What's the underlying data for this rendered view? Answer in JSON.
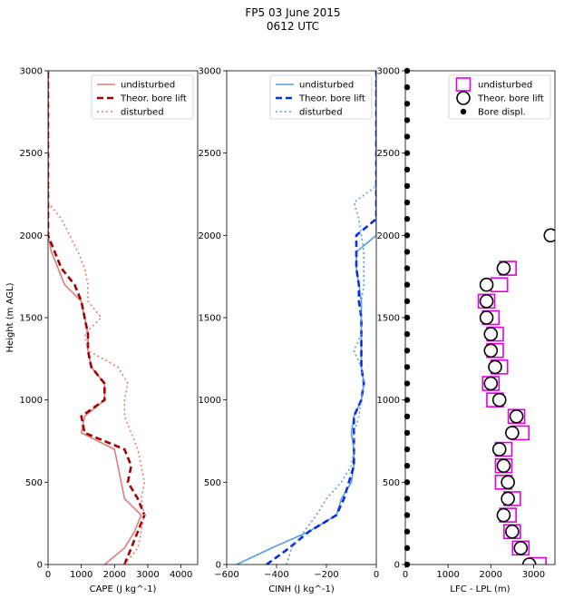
{
  "title": {
    "line1": "FP5 03 June 2015",
    "line2": "0612 UTC"
  },
  "chart_data": [
    {
      "type": "line",
      "xlabel": "CAPE (J kg^-1)",
      "ylabel": "Height (m AGL)",
      "xlim": [
        0,
        4500
      ],
      "ylim": [
        0,
        3000
      ],
      "xticks": [
        0,
        1000,
        2000,
        3000,
        4000
      ],
      "yticks": [
        0,
        500,
        1000,
        1500,
        2000,
        2500,
        3000
      ],
      "legend": "top-right",
      "series": [
        {
          "name": "undisturbed",
          "color": "#e07b7b",
          "style": "solid",
          "points": [
            [
              1700,
              0
            ],
            [
              2300,
              100
            ],
            [
              2600,
              200
            ],
            [
              2800,
              300
            ],
            [
              2300,
              400
            ],
            [
              2200,
              500
            ],
            [
              2100,
              600
            ],
            [
              2000,
              700
            ],
            [
              1000,
              800
            ],
            [
              1100,
              900
            ],
            [
              1700,
              1000
            ],
            [
              1700,
              1100
            ],
            [
              1300,
              1200
            ],
            [
              1200,
              1300
            ],
            [
              1200,
              1400
            ],
            [
              1100,
              1500
            ],
            [
              1000,
              1600
            ],
            [
              500,
              1700
            ],
            [
              300,
              1800
            ],
            [
              100,
              1900
            ],
            [
              0,
              2000
            ],
            [
              0,
              3000
            ]
          ]
        },
        {
          "name": "Theor. bore lift",
          "color": "#a00000",
          "style": "dashed",
          "points": [
            [
              2300,
              0
            ],
            [
              2500,
              100
            ],
            [
              2700,
              200
            ],
            [
              2900,
              300
            ],
            [
              2700,
              400
            ],
            [
              2400,
              500
            ],
            [
              2500,
              600
            ],
            [
              2300,
              700
            ],
            [
              1100,
              800
            ],
            [
              1000,
              900
            ],
            [
              1700,
              1000
            ],
            [
              1700,
              1100
            ],
            [
              1300,
              1200
            ],
            [
              1200,
              1300
            ],
            [
              1200,
              1400
            ],
            [
              1100,
              1500
            ],
            [
              1000,
              1600
            ],
            [
              800,
              1700
            ],
            [
              400,
              1800
            ],
            [
              200,
              1900
            ],
            [
              0,
              2000
            ],
            [
              0,
              3000
            ]
          ]
        },
        {
          "name": "disturbed",
          "color": "#e07b7b",
          "style": "dotted",
          "points": [
            [
              2300,
              0
            ],
            [
              2700,
              100
            ],
            [
              2800,
              200
            ],
            [
              2900,
              300
            ],
            [
              2800,
              400
            ],
            [
              2900,
              500
            ],
            [
              2800,
              600
            ],
            [
              2700,
              700
            ],
            [
              2500,
              800
            ],
            [
              2300,
              900
            ],
            [
              2300,
              1000
            ],
            [
              2400,
              1100
            ],
            [
              2100,
              1200
            ],
            [
              1200,
              1300
            ],
            [
              1100,
              1400
            ],
            [
              1600,
              1500
            ],
            [
              1200,
              1600
            ],
            [
              1200,
              1700
            ],
            [
              1100,
              1800
            ],
            [
              900,
              1900
            ],
            [
              400,
              2100
            ],
            [
              0,
              2200
            ],
            [
              0,
              3000
            ]
          ]
        }
      ]
    },
    {
      "type": "line",
      "xlabel": "CINH (J kg^-1)",
      "xlim": [
        -600,
        0
      ],
      "ylim": [
        0,
        3000
      ],
      "xticks": [
        -600,
        -400,
        -200,
        0
      ],
      "yticks": [
        0,
        500,
        1000,
        1500,
        2000,
        2500,
        3000
      ],
      "legend": "top-right",
      "series": [
        {
          "name": "undisturbed",
          "color": "#5b9be0",
          "style": "solid",
          "points": [
            [
              -560,
              0
            ],
            [
              -420,
              100
            ],
            [
              -270,
              200
            ],
            [
              -160,
              300
            ],
            [
              -140,
              400
            ],
            [
              -100,
              500
            ],
            [
              -90,
              600
            ],
            [
              -90,
              700
            ],
            [
              -100,
              800
            ],
            [
              -90,
              900
            ],
            [
              -60,
              1000
            ],
            [
              -50,
              1100
            ],
            [
              -60,
              1200
            ],
            [
              -60,
              1300
            ],
            [
              -60,
              1400
            ],
            [
              -60,
              1500
            ],
            [
              -60,
              1600
            ],
            [
              -70,
              1700
            ],
            [
              -80,
              1800
            ],
            [
              -80,
              1900
            ],
            [
              0,
              2000
            ],
            [
              0,
              3000
            ]
          ]
        },
        {
          "name": "Theor. bore lift",
          "color": "#0a2ee0",
          "style": "dashed",
          "points": [
            [
              -440,
              0
            ],
            [
              -350,
              100
            ],
            [
              -270,
              200
            ],
            [
              -160,
              300
            ],
            [
              -130,
              400
            ],
            [
              -110,
              500
            ],
            [
              -90,
              600
            ],
            [
              -90,
              700
            ],
            [
              -90,
              800
            ],
            [
              -90,
              900
            ],
            [
              -60,
              1000
            ],
            [
              -50,
              1100
            ],
            [
              -60,
              1200
            ],
            [
              -60,
              1300
            ],
            [
              -60,
              1400
            ],
            [
              -60,
              1500
            ],
            [
              -70,
              1600
            ],
            [
              -70,
              1700
            ],
            [
              -80,
              1800
            ],
            [
              -80,
              1900
            ],
            [
              -80,
              2000
            ],
            [
              0,
              2100
            ],
            [
              0,
              3000
            ]
          ]
        },
        {
          "name": "disturbed",
          "color": "#5b9be0",
          "style": "dotted",
          "points": [
            [
              -360,
              0
            ],
            [
              -340,
              100
            ],
            [
              -290,
              200
            ],
            [
              -240,
              300
            ],
            [
              -200,
              400
            ],
            [
              -140,
              500
            ],
            [
              -100,
              600
            ],
            [
              -90,
              700
            ],
            [
              -90,
              800
            ],
            [
              -70,
              900
            ],
            [
              -60,
              1000
            ],
            [
              -50,
              1100
            ],
            [
              -60,
              1200
            ],
            [
              -90,
              1300
            ],
            [
              -60,
              1400
            ],
            [
              -60,
              1500
            ],
            [
              -60,
              1600
            ],
            [
              -50,
              1700
            ],
            [
              -50,
              1800
            ],
            [
              -50,
              1900
            ],
            [
              -60,
              2000
            ],
            [
              -70,
              2100
            ],
            [
              -90,
              2200
            ],
            [
              0,
              2300
            ],
            [
              0,
              3000
            ]
          ]
        }
      ]
    },
    {
      "type": "scatter",
      "xlabel": "LFC - LPL (m)",
      "xlim": [
        0,
        3500
      ],
      "ylim": [
        0,
        3000
      ],
      "xticks": [
        0,
        1000,
        2000,
        3000
      ],
      "yticks": [
        0,
        500,
        1000,
        1500,
        2000,
        2500,
        3000
      ],
      "legend": "top-right",
      "series": [
        {
          "name": "undisturbed",
          "marker": "square",
          "color": "#e000e0",
          "points": [
            [
              3100,
              0
            ],
            [
              2700,
              100
            ],
            [
              2500,
              200
            ],
            [
              2400,
              300
            ],
            [
              2500,
              400
            ],
            [
              2300,
              500
            ],
            [
              2300,
              600
            ],
            [
              2300,
              700
            ],
            [
              2700,
              800
            ],
            [
              2600,
              900
            ],
            [
              2100,
              1000
            ],
            [
              2000,
              1100
            ],
            [
              2200,
              1200
            ],
            [
              2100,
              1300
            ],
            [
              2100,
              1400
            ],
            [
              2000,
              1500
            ],
            [
              1900,
              1600
            ],
            [
              2200,
              1700
            ],
            [
              2400,
              1800
            ]
          ]
        },
        {
          "name": "Theor. bore lift",
          "marker": "circle-open",
          "color": "#000000",
          "points": [
            [
              2900,
              0
            ],
            [
              2700,
              100
            ],
            [
              2500,
              200
            ],
            [
              2300,
              300
            ],
            [
              2400,
              400
            ],
            [
              2400,
              500
            ],
            [
              2300,
              600
            ],
            [
              2200,
              700
            ],
            [
              2500,
              800
            ],
            [
              2600,
              900
            ],
            [
              2200,
              1000
            ],
            [
              2000,
              1100
            ],
            [
              2100,
              1200
            ],
            [
              2000,
              1300
            ],
            [
              2000,
              1400
            ],
            [
              1900,
              1500
            ],
            [
              1900,
              1600
            ],
            [
              1900,
              1700
            ],
            [
              2300,
              1800
            ],
            [
              3400,
              2000
            ]
          ]
        },
        {
          "name": "Bore displ.",
          "marker": "circle-filled",
          "color": "#000000",
          "points": [
            [
              0,
              0
            ],
            [
              0,
              100
            ],
            [
              0,
              200
            ],
            [
              0,
              300
            ],
            [
              0,
              400
            ],
            [
              0,
              500
            ],
            [
              0,
              600
            ],
            [
              0,
              700
            ],
            [
              0,
              800
            ],
            [
              0,
              900
            ],
            [
              0,
              1000
            ],
            [
              0,
              1100
            ],
            [
              0,
              1200
            ],
            [
              0,
              1300
            ],
            [
              0,
              1400
            ],
            [
              0,
              1500
            ],
            [
              0,
              1600
            ],
            [
              0,
              1700
            ],
            [
              0,
              1800
            ],
            [
              0,
              1900
            ],
            [
              0,
              2000
            ],
            [
              0,
              2100
            ],
            [
              0,
              2200
            ],
            [
              0,
              2300
            ],
            [
              0,
              2400
            ],
            [
              0,
              2500
            ],
            [
              0,
              2600
            ],
            [
              0,
              2700
            ],
            [
              0,
              2800
            ],
            [
              0,
              2900
            ],
            [
              0,
              3000
            ]
          ]
        }
      ]
    }
  ]
}
